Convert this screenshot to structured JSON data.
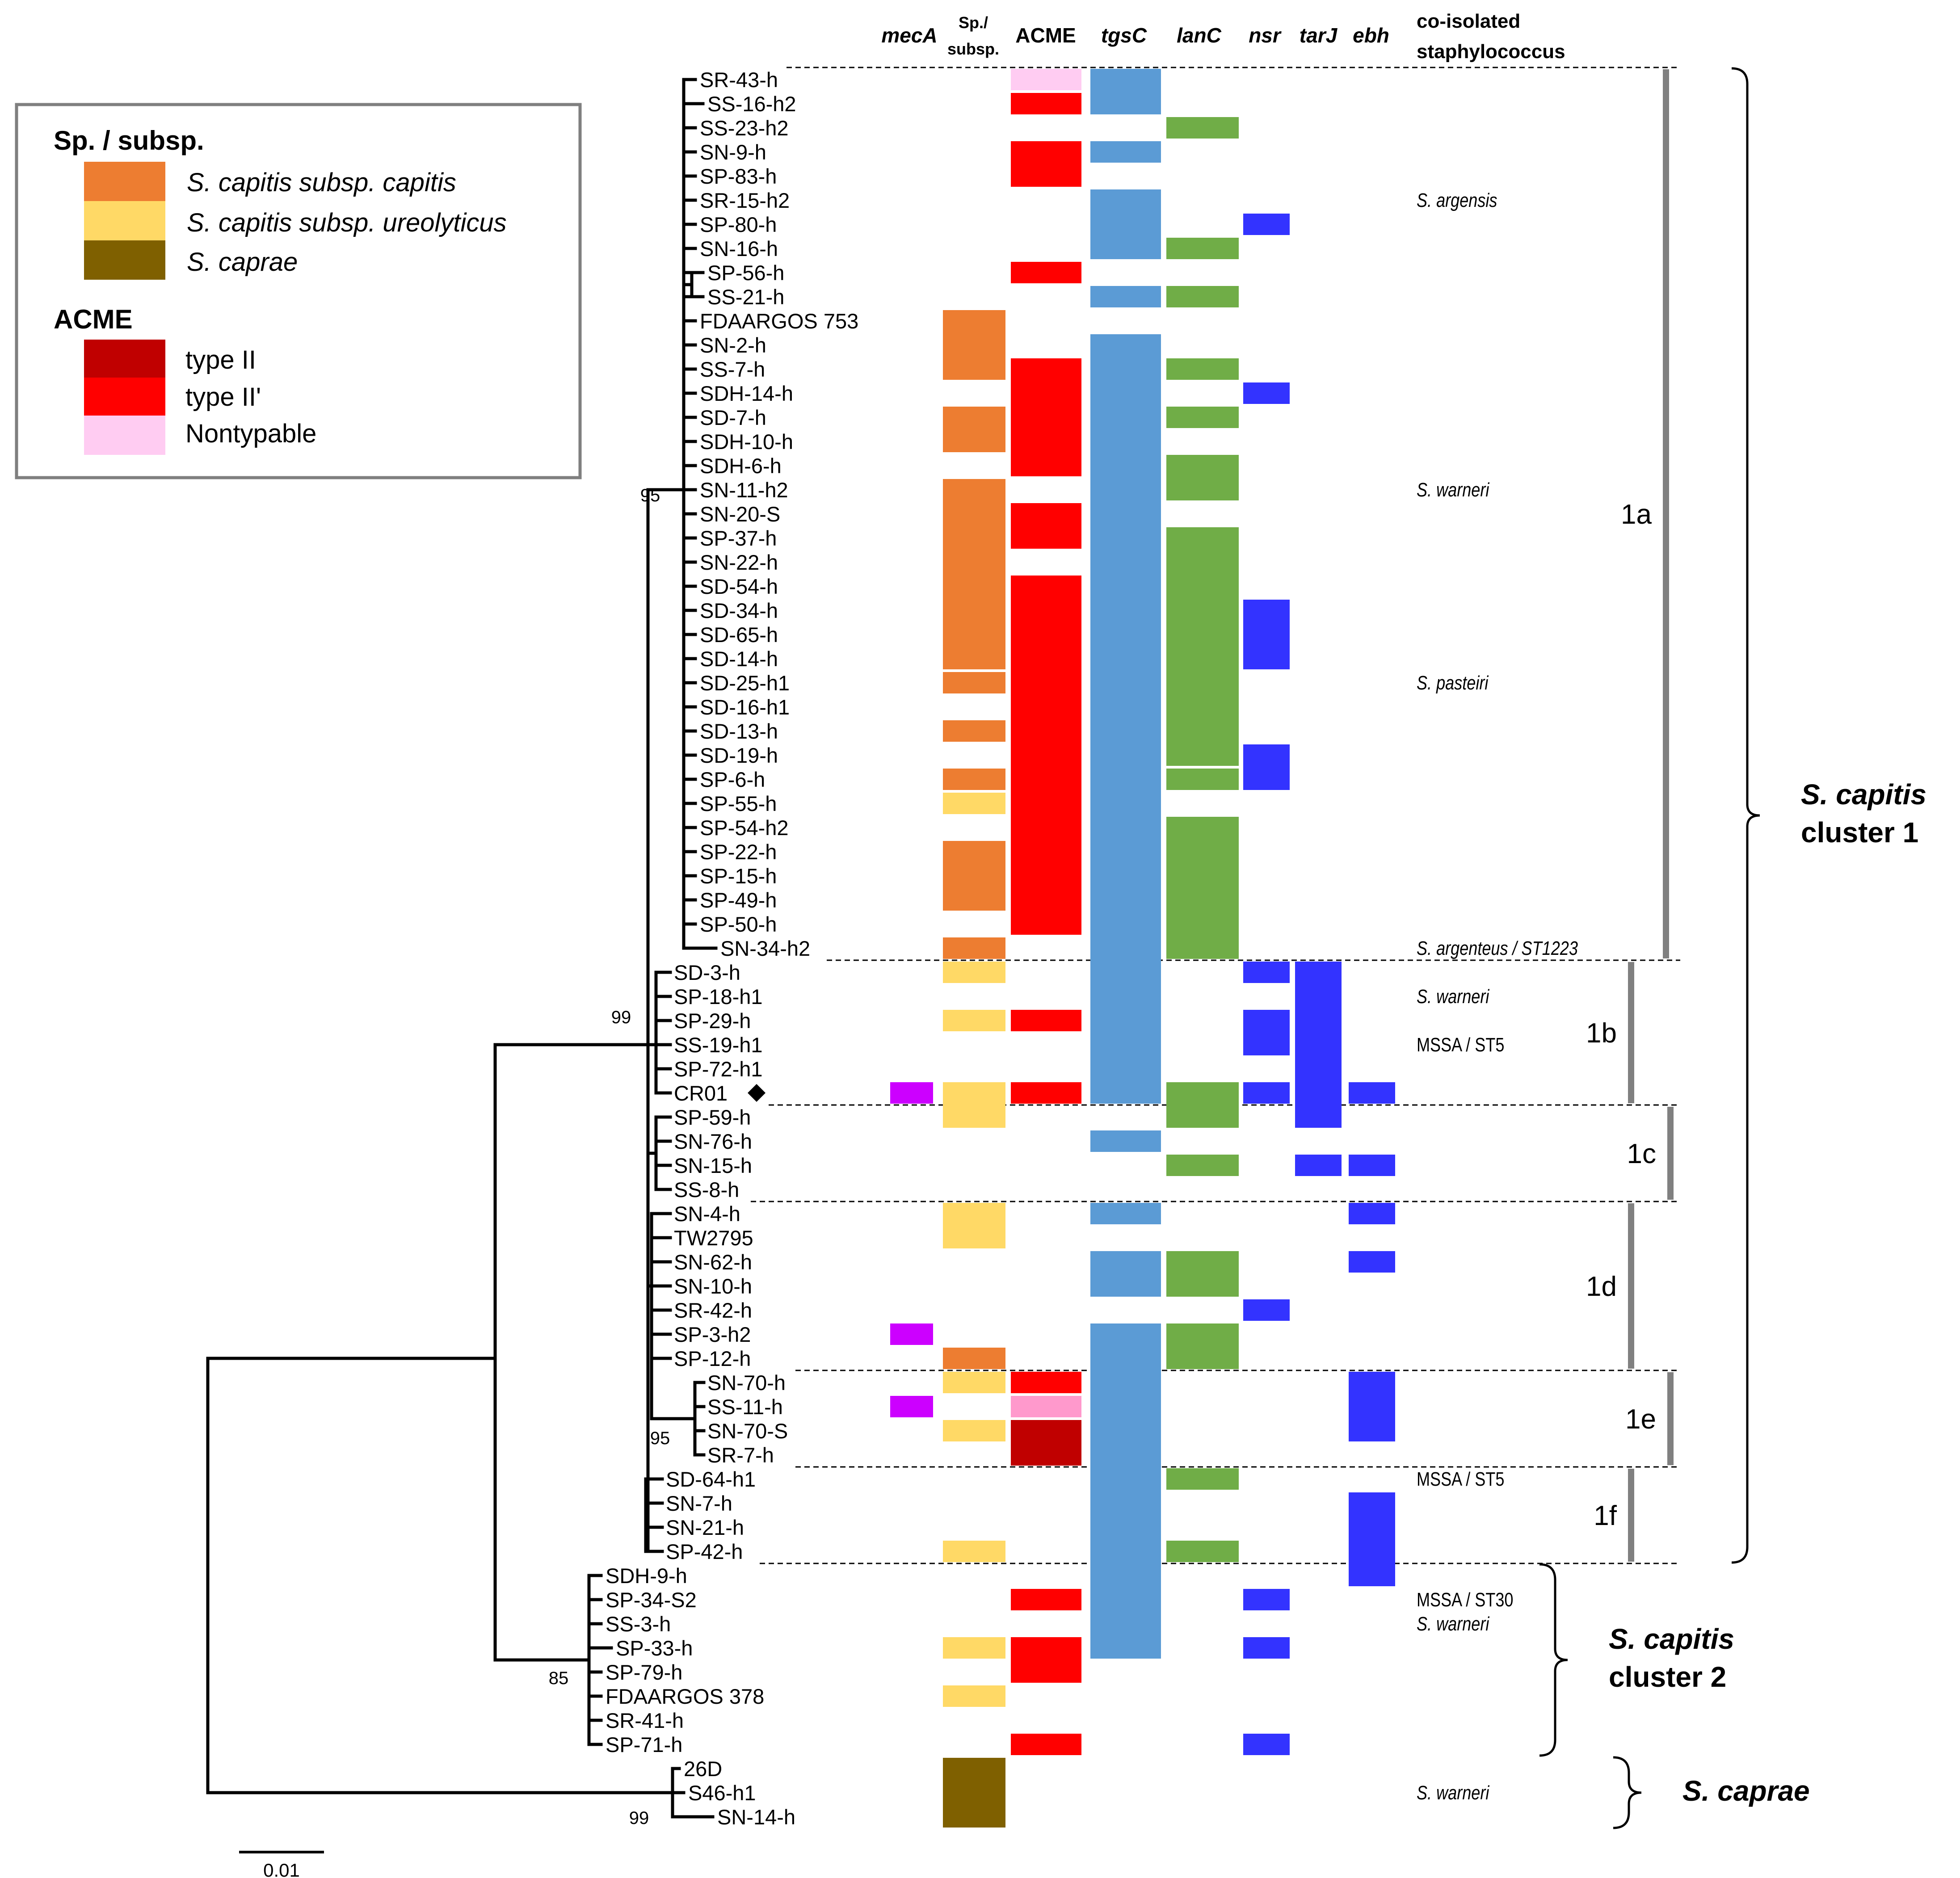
{
  "figure": {
    "column_headers": [
      {
        "label": "mecA",
        "italic": true
      },
      {
        "label": "Sp./",
        "line2": "subsp.",
        "italic": false
      },
      {
        "label": "ACME",
        "italic": false
      },
      {
        "label": "tgsC",
        "italic": true
      },
      {
        "label": "lanC",
        "italic": true
      },
      {
        "label": "nsr",
        "italic": true
      },
      {
        "label": "tarJ",
        "italic": true
      },
      {
        "label": "ebh",
        "italic": true
      }
    ],
    "coisolated_header": [
      "co-isolated",
      "staphylococcus"
    ],
    "legend": {
      "sp_title": "Sp. / subsp.",
      "sp_items": [
        {
          "label": "S. capitis subsp. capitis",
          "color": "#ed7d31"
        },
        {
          "label": "S. capitis subsp. ureolyticus",
          "color": "#ffd966"
        },
        {
          "label": "S. caprae",
          "color": "#7f6000"
        }
      ],
      "acme_title": "ACME",
      "acme_items": [
        {
          "label": "type II",
          "color": "#c00000"
        },
        {
          "label": "type II'",
          "color": "#ff0000"
        },
        {
          "label": "Nontypable",
          "color": "#ffccf2"
        }
      ]
    },
    "colors": {
      "mecA": "#cc00ff",
      "tgsC": "#5b9bd5",
      "lanC": "#70ad47",
      "nsr": "#3333ff",
      "tarJ": "#3333ff",
      "ebh": "#3333ff",
      "acme_nontypable_1e": "#ff99cc"
    },
    "taxa": [
      "SR-43-h",
      "SS-16-h2",
      "SS-23-h2",
      "SN-9-h",
      "SP-83-h",
      "SR-15-h2",
      "SP-80-h",
      "SN-16-h",
      "SP-56-h",
      "SS-21-h",
      "FDAARGOS 753",
      "SN-2-h",
      "SS-7-h",
      "SDH-14-h",
      "SD-7-h",
      "SDH-10-h",
      "SDH-6-h",
      "SN-11-h2",
      "SN-20-S",
      "SP-37-h",
      "SN-22-h",
      "SD-54-h",
      "SD-34-h",
      "SD-65-h",
      "SD-14-h",
      "SD-25-h1",
      "SD-16-h1",
      "SD-13-h",
      "SD-19-h",
      "SP-6-h",
      "SP-55-h",
      "SP-54-h2",
      "SP-22-h",
      "SP-15-h",
      "SP-49-h",
      "SP-50-h",
      "SN-34-h2",
      "SD-3-h",
      "SP-18-h1",
      "SP-29-h",
      "SS-19-h1",
      "SP-72-h1",
      "CR01",
      "SP-59-h",
      "SN-76-h",
      "SN-15-h",
      "SS-8-h",
      "SN-4-h",
      "TW2795",
      "SN-62-h",
      "SN-10-h",
      "SR-42-h",
      "SP-3-h2",
      "SP-12-h",
      "SN-70-h",
      "SS-11-h",
      "SN-70-S",
      "SR-7-h",
      "SD-64-h1",
      "SN-7-h",
      "SN-21-h",
      "SP-42-h",
      "SDH-9-h",
      "SP-34-S2",
      "SS-3-h",
      "SP-33-h",
      "SP-79-h",
      "FDAARGOS 378",
      "SR-41-h",
      "SP-71-h",
      "26D",
      "S46-h1",
      "SN-14-h"
    ],
    "tracks": {
      "mecA": [
        [
          42,
          42
        ],
        [
          52,
          52
        ],
        [
          55,
          55
        ]
      ],
      "sp": [
        [
          10,
          12,
          "capitis"
        ],
        [
          14,
          15,
          "capitis"
        ],
        [
          17,
          24,
          "capitis"
        ],
        [
          25,
          25,
          "capitis"
        ],
        [
          27,
          27,
          "capitis"
        ],
        [
          29,
          29,
          "capitis"
        ],
        [
          30,
          30,
          "ureolyticus"
        ],
        [
          32,
          34,
          "capitis"
        ],
        [
          36,
          36,
          "capitis"
        ],
        [
          37,
          37,
          "ureolyticus"
        ],
        [
          39,
          39,
          "ureolyticus"
        ],
        [
          42,
          43,
          "ureolyticus"
        ],
        [
          47,
          48,
          "ureolyticus"
        ],
        [
          53,
          53,
          "capitis"
        ],
        [
          54,
          54,
          "ureolyticus"
        ],
        [
          56,
          56,
          "ureolyticus"
        ],
        [
          61,
          61,
          "ureolyticus"
        ],
        [
          65,
          65,
          "ureolyticus"
        ],
        [
          67,
          67,
          "ureolyticus"
        ],
        [
          70,
          72,
          "caprae"
        ]
      ],
      "acme": [
        [
          0,
          0,
          "nontypable"
        ],
        [
          1,
          1,
          "typeIIp"
        ],
        [
          3,
          4,
          "typeIIp"
        ],
        [
          8,
          8,
          "typeIIp"
        ],
        [
          12,
          16,
          "typeIIp"
        ],
        [
          18,
          19,
          "typeIIp"
        ],
        [
          21,
          35,
          "typeIIp"
        ],
        [
          39,
          39,
          "typeIIp"
        ],
        [
          42,
          42,
          "typeIIp"
        ],
        [
          54,
          54,
          "typeIIp"
        ],
        [
          55,
          55,
          "nontypable_1e"
        ],
        [
          56,
          57,
          "typeII"
        ],
        [
          63,
          63,
          "typeIIp"
        ],
        [
          65,
          66,
          "typeIIp"
        ],
        [
          69,
          69,
          "typeIIp"
        ]
      ],
      "tgsC": [
        [
          0,
          1
        ],
        [
          3,
          3
        ],
        [
          5,
          7
        ],
        [
          9,
          9
        ],
        [
          11,
          42
        ],
        [
          44,
          44
        ],
        [
          47,
          47
        ],
        [
          49,
          50
        ],
        [
          52,
          65
        ]
      ],
      "lanC": [
        [
          2,
          2
        ],
        [
          7,
          7
        ],
        [
          9,
          9
        ],
        [
          12,
          12
        ],
        [
          14,
          14
        ],
        [
          16,
          17
        ],
        [
          19,
          28
        ],
        [
          29,
          29
        ],
        [
          31,
          36
        ],
        [
          42,
          43
        ],
        [
          45,
          45
        ],
        [
          49,
          50
        ],
        [
          52,
          53
        ],
        [
          58,
          58
        ],
        [
          61,
          61
        ]
      ],
      "nsr": [
        [
          6,
          6
        ],
        [
          13,
          13
        ],
        [
          22,
          24
        ],
        [
          28,
          29
        ],
        [
          37,
          37
        ],
        [
          39,
          40
        ],
        [
          42,
          42
        ],
        [
          51,
          51
        ],
        [
          63,
          63
        ],
        [
          65,
          65
        ],
        [
          69,
          69
        ]
      ],
      "tarJ": [
        [
          37,
          43
        ],
        [
          45,
          45
        ]
      ],
      "ebh": [
        [
          42,
          42
        ],
        [
          45,
          45
        ],
        [
          47,
          47
        ],
        [
          49,
          49
        ],
        [
          54,
          56
        ],
        [
          59,
          62
        ]
      ]
    },
    "coisolated": [
      {
        "row": 5,
        "text": "S. argensis"
      },
      {
        "row": 17,
        "text": "S. warneri"
      },
      {
        "row": 25,
        "text": "S. pasteiri"
      },
      {
        "row": 36,
        "text": "S. argenteus / ST1223"
      },
      {
        "row": 38,
        "text": "S. warneri"
      },
      {
        "row": 40,
        "text": "MSSA / ST5"
      },
      {
        "row": 58,
        "text": "MSSA / ST5"
      },
      {
        "row": 63,
        "text": "MSSA / ST30"
      },
      {
        "row": 64,
        "text": "S. warneri"
      },
      {
        "row": 71,
        "text": "S. warneri"
      }
    ],
    "subclusters": [
      {
        "label": "1a",
        "from": 0,
        "to": 36
      },
      {
        "label": "1b",
        "from": 37,
        "to": 42
      },
      {
        "label": "1c",
        "from": 43,
        "to": 46
      },
      {
        "label": "1d",
        "from": 47,
        "to": 53
      },
      {
        "label": "1e",
        "from": 54,
        "to": 57
      },
      {
        "label": "1f",
        "from": 58,
        "to": 61
      }
    ],
    "clusters": [
      {
        "line1": "S. capitis",
        "line2": "cluster 1",
        "from": 0,
        "to": 61
      },
      {
        "line1": "S. capitis",
        "line2": "cluster 2",
        "from": 62,
        "to": 69
      },
      {
        "line1": "S. caprae",
        "line2": "",
        "from": 70,
        "to": 72
      }
    ],
    "bootstrap": [
      {
        "label": "95",
        "node": "cluster1a"
      },
      {
        "label": "99",
        "node": "cluster1"
      },
      {
        "label": "95",
        "node": "cluster1e"
      },
      {
        "label": "85",
        "node": "cluster2"
      },
      {
        "label": "99",
        "node": "caprae"
      }
    ],
    "reference_marker_row": 42,
    "scale_bar": {
      "label": "0.01"
    }
  }
}
